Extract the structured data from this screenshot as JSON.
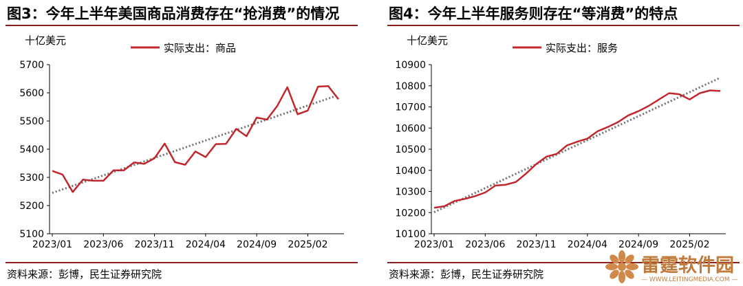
{
  "left": {
    "title": "图3：今年上半年美国商品消费存在“抢消费”的情况",
    "source": "资料来源：彭博，民生证券研究院"
  },
  "right": {
    "title": "图4：今年上半年服务则存在“等消费”的特点",
    "source": "资料来源：彭博，民生证券研究院"
  },
  "watermark": {
    "name": "雷霆软件园",
    "url": "— WWW.LEITINGMEDIA.COM —"
  },
  "colors": {
    "line": "#c0262c",
    "trend": "#707070",
    "rule": "#8f1e1e"
  },
  "chart_data": [
    {
      "type": "line",
      "unit_label": "十亿美元",
      "legend": "实际支出：商品",
      "ylim": [
        5100,
        5700
      ],
      "yticks": [
        5100,
        5200,
        5300,
        5400,
        5500,
        5600,
        5700
      ],
      "x_tick_labels": [
        "2023/01",
        "2023/06",
        "2023/11",
        "2024/04",
        "2024/09",
        "2025/02"
      ],
      "x_tick_index": [
        0,
        5,
        10,
        15,
        20,
        25
      ],
      "series": [
        {
          "name": "实际支出：商品",
          "values": [
            5323,
            5310,
            5248,
            5292,
            5288,
            5288,
            5325,
            5325,
            5353,
            5348,
            5368,
            5420,
            5354,
            5345,
            5392,
            5372,
            5418,
            5419,
            5472,
            5446,
            5512,
            5505,
            5553,
            5620,
            5524,
            5537,
            5622,
            5624,
            5577
          ]
        }
      ],
      "trend": [
        5245,
        5592
      ]
    },
    {
      "type": "line",
      "unit_label": "十亿美元",
      "legend": "实际支出：服务",
      "ylim": [
        10100,
        10900
      ],
      "yticks": [
        10100,
        10200,
        10300,
        10400,
        10500,
        10600,
        10700,
        10800,
        10900
      ],
      "x_tick_labels": [
        "2023/01",
        "2023/06",
        "2023/11",
        "2024/04",
        "2024/09",
        "2025/02"
      ],
      "x_tick_index": [
        0,
        5,
        10,
        15,
        20,
        25
      ],
      "series": [
        {
          "name": "实际支出：服务",
          "values": [
            10223,
            10230,
            10255,
            10265,
            10278,
            10295,
            10328,
            10332,
            10345,
            10385,
            10430,
            10465,
            10478,
            10518,
            10535,
            10550,
            10585,
            10605,
            10628,
            10660,
            10680,
            10705,
            10735,
            10765,
            10760,
            10735,
            10765,
            10778,
            10775
          ]
        }
      ],
      "trend": [
        10202,
        10838
      ]
    }
  ]
}
